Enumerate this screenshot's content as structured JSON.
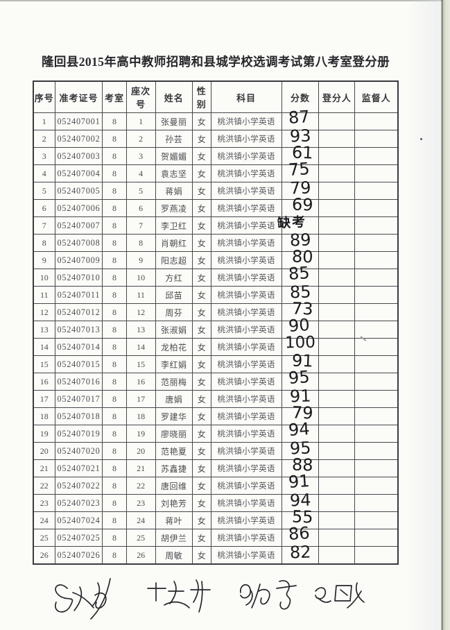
{
  "document": {
    "title": "隆回县2015年高中教师招聘和县城学校选调考试第八考室登分册"
  },
  "table": {
    "headers": [
      "序号",
      "准考证号",
      "考室",
      "座次号",
      "姓名",
      "性别",
      "科目",
      "分数",
      "登分人",
      "监督人"
    ],
    "rows": [
      {
        "no": "1",
        "ticket": "052407001",
        "room": "8",
        "seat": "1",
        "name": "张曼丽",
        "gender": "女",
        "subject": "桃洪镇小学英语",
        "score": "87",
        "recorder": "",
        "supervisor": ""
      },
      {
        "no": "2",
        "ticket": "052407002",
        "room": "8",
        "seat": "2",
        "name": "孙芸",
        "gender": "女",
        "subject": "桃洪镇小学英语",
        "score": "93",
        "recorder": "",
        "supervisor": ""
      },
      {
        "no": "3",
        "ticket": "052407003",
        "room": "8",
        "seat": "3",
        "name": "贺媚媚",
        "gender": "女",
        "subject": "桃洪镇小学英语",
        "score": "61",
        "recorder": "",
        "supervisor": ""
      },
      {
        "no": "4",
        "ticket": "052407004",
        "room": "8",
        "seat": "4",
        "name": "袁志坚",
        "gender": "女",
        "subject": "桃洪镇小学英语",
        "score": "75",
        "recorder": "",
        "supervisor": ""
      },
      {
        "no": "5",
        "ticket": "052407005",
        "room": "8",
        "seat": "5",
        "name": "蒋娟",
        "gender": "女",
        "subject": "桃洪镇小学英语",
        "score": "79",
        "recorder": "",
        "supervisor": ""
      },
      {
        "no": "6",
        "ticket": "052407006",
        "room": "8",
        "seat": "6",
        "name": "罗燕凌",
        "gender": "女",
        "subject": "桃洪镇小学英语",
        "score": "69",
        "recorder": "",
        "supervisor": ""
      },
      {
        "no": "7",
        "ticket": "052407007",
        "room": "8",
        "seat": "7",
        "name": "李卫红",
        "gender": "女",
        "subject": "桃洪镇小学英语",
        "score": "缺考",
        "recorder": "",
        "supervisor": ""
      },
      {
        "no": "8",
        "ticket": "052407008",
        "room": "8",
        "seat": "8",
        "name": "肖朝红",
        "gender": "女",
        "subject": "桃洪镇小学英语",
        "score": "89",
        "recorder": "",
        "supervisor": ""
      },
      {
        "no": "9",
        "ticket": "052407009",
        "room": "8",
        "seat": "9",
        "name": "阳志超",
        "gender": "女",
        "subject": "桃洪镇小学英语",
        "score": "80",
        "recorder": "",
        "supervisor": ""
      },
      {
        "no": "10",
        "ticket": "052407010",
        "room": "8",
        "seat": "10",
        "name": "方红",
        "gender": "女",
        "subject": "桃洪镇小学英语",
        "score": "85",
        "recorder": "",
        "supervisor": ""
      },
      {
        "no": "11",
        "ticket": "052407011",
        "room": "8",
        "seat": "11",
        "name": "邱苗",
        "gender": "女",
        "subject": "桃洪镇小学英语",
        "score": "85",
        "recorder": "",
        "supervisor": ""
      },
      {
        "no": "12",
        "ticket": "052407012",
        "room": "8",
        "seat": "12",
        "name": "周芬",
        "gender": "女",
        "subject": "桃洪镇小学英语",
        "score": "73",
        "recorder": "",
        "supervisor": ""
      },
      {
        "no": "13",
        "ticket": "052407013",
        "room": "8",
        "seat": "13",
        "name": "张淑娟",
        "gender": "女",
        "subject": "桃洪镇小学英语",
        "score": "90",
        "recorder": "",
        "supervisor": ""
      },
      {
        "no": "14",
        "ticket": "052407014",
        "room": "8",
        "seat": "14",
        "name": "龙柏花",
        "gender": "女",
        "subject": "桃洪镇小学英语",
        "score": "100",
        "recorder": "",
        "supervisor": ""
      },
      {
        "no": "15",
        "ticket": "052407015",
        "room": "8",
        "seat": "15",
        "name": "李红娟",
        "gender": "女",
        "subject": "桃洪镇小学英语",
        "score": "91",
        "recorder": "",
        "supervisor": ""
      },
      {
        "no": "16",
        "ticket": "052407016",
        "room": "8",
        "seat": "16",
        "name": "范丽梅",
        "gender": "女",
        "subject": "桃洪镇小学英语",
        "score": "95",
        "recorder": "",
        "supervisor": ""
      },
      {
        "no": "17",
        "ticket": "052407017",
        "room": "8",
        "seat": "17",
        "name": "唐娟",
        "gender": "女",
        "subject": "桃洪镇小学英语",
        "score": "91",
        "recorder": "",
        "supervisor": ""
      },
      {
        "no": "18",
        "ticket": "052407018",
        "room": "8",
        "seat": "18",
        "name": "罗建华",
        "gender": "女",
        "subject": "桃洪镇小学英语",
        "score": "79",
        "recorder": "",
        "supervisor": ""
      },
      {
        "no": "19",
        "ticket": "052407019",
        "room": "8",
        "seat": "19",
        "name": "廖晓丽",
        "gender": "女",
        "subject": "桃洪镇小学英语",
        "score": "94",
        "recorder": "",
        "supervisor": ""
      },
      {
        "no": "20",
        "ticket": "052407020",
        "room": "8",
        "seat": "20",
        "name": "范艳夏",
        "gender": "女",
        "subject": "桃洪镇小学英语",
        "score": "95",
        "recorder": "",
        "supervisor": ""
      },
      {
        "no": "21",
        "ticket": "052407021",
        "room": "8",
        "seat": "21",
        "name": "苏鑫捷",
        "gender": "女",
        "subject": "桃洪镇小学英语",
        "score": "88",
        "recorder": "",
        "supervisor": ""
      },
      {
        "no": "22",
        "ticket": "052407022",
        "room": "8",
        "seat": "22",
        "name": "唐回维",
        "gender": "女",
        "subject": "桃洪镇小学英语",
        "score": "91",
        "recorder": "",
        "supervisor": ""
      },
      {
        "no": "23",
        "ticket": "052407023",
        "room": "8",
        "seat": "23",
        "name": "刘艳芳",
        "gender": "女",
        "subject": "桃洪镇小学英语",
        "score": "94",
        "recorder": "",
        "supervisor": ""
      },
      {
        "no": "24",
        "ticket": "052407024",
        "room": "8",
        "seat": "24",
        "name": "蒋叶",
        "gender": "女",
        "subject": "桃洪镇小学英语",
        "score": "55",
        "recorder": "",
        "supervisor": ""
      },
      {
        "no": "25",
        "ticket": "052407025",
        "room": "8",
        "seat": "25",
        "name": "胡伊兰",
        "gender": "女",
        "subject": "桃洪镇小学英语",
        "score": "86",
        "recorder": "",
        "supervisor": ""
      },
      {
        "no": "26",
        "ticket": "052407026",
        "room": "8",
        "seat": "26",
        "name": "周敏",
        "gender": "女",
        "subject": "桃洪镇小学英语",
        "score": "82",
        "recorder": "",
        "supervisor": ""
      }
    ]
  },
  "handwriting": {
    "absent_label": "缺考",
    "signatures": [
      "（字迹潦草）",
      "古建华",
      "冯佑勇",
      "罗国良"
    ]
  },
  "colors": {
    "page": "#fbfbf8",
    "table_border": "#47474b",
    "printed_text": "#4c4c50",
    "pen_ink": "#1b1b1f",
    "scan_edge_strip": "#c6cab2"
  }
}
